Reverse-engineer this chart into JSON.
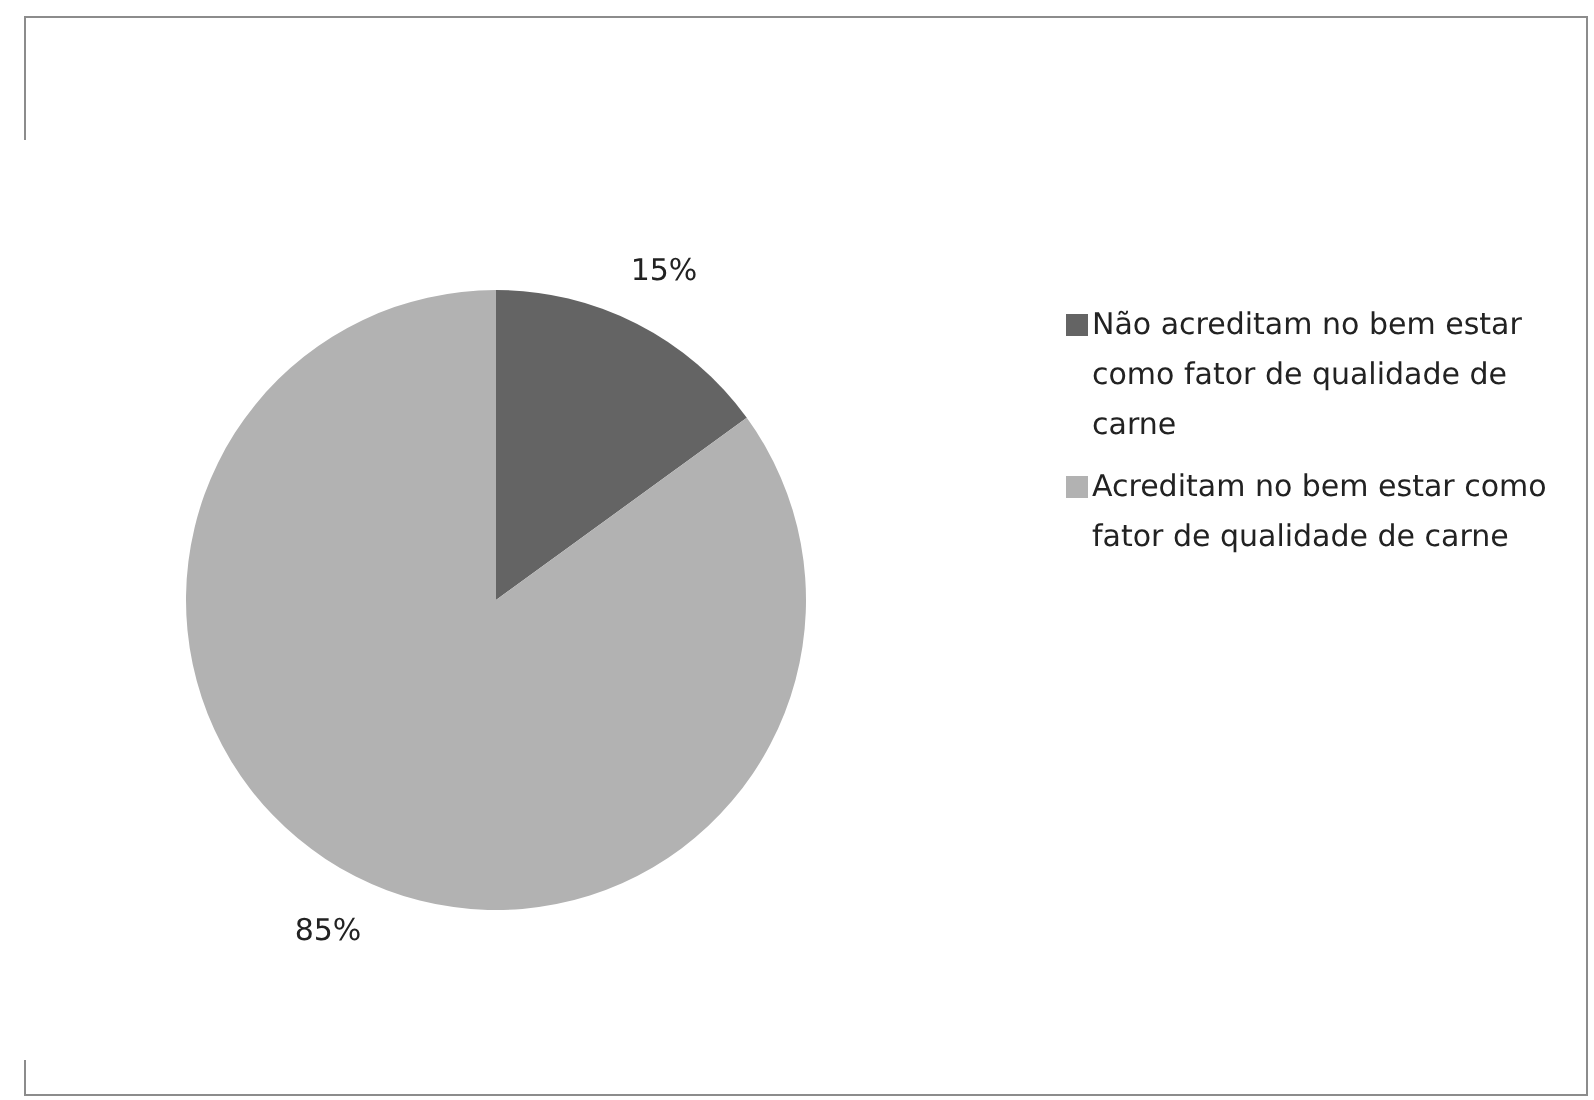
{
  "chart_data": {
    "type": "pie",
    "categories": [
      "Não acreditam no bem estar como fator de qualidade de carne",
      "Acreditam no bem estar como fator de qualidade de carne"
    ],
    "values": [
      15,
      85
    ],
    "colors": [
      "#646464",
      "#b2b2b2"
    ],
    "value_labels": [
      "15%",
      "85%"
    ],
    "legend": "right"
  }
}
